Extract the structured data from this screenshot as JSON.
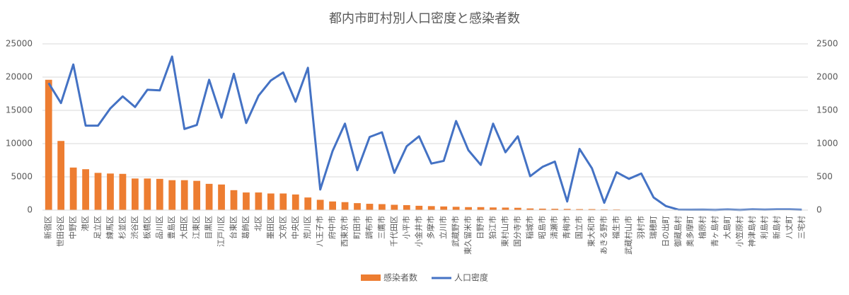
{
  "chart_data": {
    "type": "bar-line",
    "title": "都内市町村別人口密度と感染者数",
    "categories": [
      "新宿区",
      "世田谷区",
      "中野区",
      "港区",
      "足立区",
      "練馬区",
      "杉並区",
      "渋谷区",
      "板橋区",
      "品川区",
      "豊島区",
      "大田区",
      "江東区",
      "目黒区",
      "江戸川区",
      "台東区",
      "葛飾区",
      "北区",
      "墨田区",
      "文京区",
      "中央区",
      "荒川区",
      "八王子市",
      "府中市",
      "西東京市",
      "町田市",
      "調布市",
      "三鷹市",
      "千代田区",
      "小平市",
      "小金井市",
      "多摩市",
      "立川市",
      "武蔵野市",
      "東久留米市",
      "日野市",
      "狛江市",
      "東村山市",
      "国分寺市",
      "稲城市",
      "昭島市",
      "清瀬市",
      "青梅市",
      "国立市",
      "東大和市",
      "あきる野市",
      "福生市",
      "武蔵村山市",
      "羽村市",
      "瑞穂町",
      "日の出町",
      "御蔵島村",
      "奥多摩町",
      "檜原村",
      "青ヶ島村",
      "大島町",
      "小笠原村",
      "神津島村",
      "利島村",
      "新島村",
      "八丈町",
      "三宅村"
    ],
    "series": [
      {
        "name": "感染者数",
        "type": "bar",
        "axis": "y2",
        "color": "#ed7d31",
        "values": [
          1960,
          1040,
          640,
          615,
          560,
          550,
          545,
          475,
          475,
          470,
          450,
          450,
          440,
          395,
          385,
          300,
          265,
          265,
          250,
          250,
          235,
          190,
          155,
          130,
          120,
          105,
          95,
          90,
          80,
          75,
          65,
          60,
          55,
          50,
          45,
          45,
          40,
          38,
          35,
          25,
          22,
          20,
          18,
          15,
          15,
          10,
          10,
          0,
          0,
          0,
          0,
          0,
          0,
          0,
          0,
          0,
          0,
          0,
          0,
          0,
          0,
          0
        ]
      },
      {
        "name": "人口密度",
        "type": "line",
        "color": "#4472c4",
        "values": [
          19100,
          16100,
          21900,
          12700,
          12700,
          15300,
          17100,
          15500,
          18100,
          18000,
          23100,
          12200,
          12800,
          19600,
          13900,
          20500,
          13100,
          17200,
          19500,
          20700,
          16300,
          21400,
          3100,
          8900,
          13000,
          6000,
          11000,
          11700,
          5600,
          9600,
          11100,
          7000,
          7400,
          13400,
          9000,
          6800,
          13000,
          8700,
          11100,
          5100,
          6500,
          7300,
          1300,
          9200,
          6300,
          1100,
          5700,
          4700,
          5500,
          1900,
          600,
          70,
          50,
          70,
          30,
          90,
          30,
          100,
          70,
          100,
          110,
          50
        ]
      }
    ],
    "ylim": [
      0,
      25000
    ],
    "yticks": [
      0,
      5000,
      10000,
      15000,
      20000,
      25000
    ],
    "y2lim": [
      0,
      2500
    ],
    "y2ticks": [
      0,
      500,
      1000,
      1500,
      2000,
      2500
    ],
    "grid": true,
    "legend": "bottom"
  }
}
